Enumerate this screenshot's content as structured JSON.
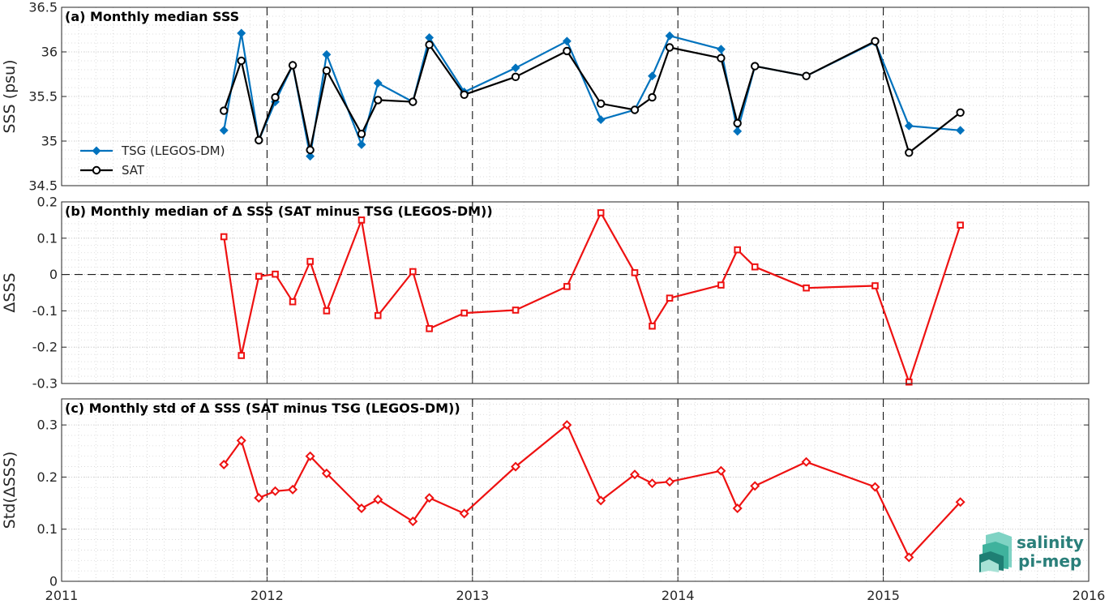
{
  "chart_data": [
    {
      "type": "line",
      "title": "(a) Monthly median SSS",
      "ylabel": "SSS (psu)",
      "xlim": [
        2011,
        2016
      ],
      "ylim": [
        34.5,
        36.5
      ],
      "yticks": [
        34.5,
        35,
        35.5,
        36,
        36.5
      ],
      "xticks": [
        2011,
        2012,
        2013,
        2014,
        2015,
        2016
      ],
      "grid": true,
      "legend_position": "bottom-left",
      "x": [
        2011.79,
        2011.875,
        2011.96,
        2012.04,
        2012.125,
        2012.21,
        2012.29,
        2012.46,
        2012.54,
        2012.71,
        2012.79,
        2012.96,
        2013.21,
        2013.46,
        2013.625,
        2013.79,
        2013.875,
        2013.96,
        2014.21,
        2014.29,
        2014.375,
        2014.625,
        2014.96,
        2015.125,
        2015.375
      ],
      "series": [
        {
          "name": "TSG (LEGOS-DM)",
          "color": "#0072BD",
          "marker": "diamond",
          "values": [
            35.12,
            36.21,
            35.01,
            35.44,
            35.85,
            34.83,
            35.97,
            34.96,
            35.65,
            35.44,
            36.16,
            35.55,
            35.82,
            36.12,
            35.24,
            35.35,
            35.73,
            36.18,
            36.03,
            35.11,
            35.84,
            35.73,
            36.11,
            35.17,
            35.12
          ]
        },
        {
          "name": "SAT",
          "color": "#000000",
          "marker": "circle",
          "values": [
            35.34,
            35.9,
            35.01,
            35.49,
            35.85,
            34.9,
            35.79,
            35.08,
            35.46,
            35.44,
            36.08,
            35.52,
            35.72,
            36.01,
            35.42,
            35.35,
            35.49,
            36.05,
            35.93,
            35.2,
            35.84,
            35.73,
            36.12,
            34.87,
            35.32
          ]
        }
      ]
    },
    {
      "type": "line",
      "title": "(b) Monthly median of Δ SSS (SAT minus TSG (LEGOS-DM))",
      "ylabel": "ΔSSS",
      "xlim": [
        2011,
        2016
      ],
      "ylim": [
        -0.3,
        0.2
      ],
      "yticks": [
        -0.3,
        -0.2,
        -0.1,
        0,
        0.1,
        0.2
      ],
      "zero_line": true,
      "grid": true,
      "x": [
        2011.79,
        2011.875,
        2011.96,
        2012.04,
        2012.125,
        2012.21,
        2012.29,
        2012.46,
        2012.54,
        2012.71,
        2012.79,
        2012.96,
        2013.21,
        2013.46,
        2013.625,
        2013.79,
        2013.875,
        2013.96,
        2014.21,
        2014.29,
        2014.375,
        2014.625,
        2014.96,
        2015.125,
        2015.375
      ],
      "series": [
        {
          "color": "#ee1111",
          "marker": "square",
          "values": [
            0.104,
            -0.223,
            -0.005,
            0.001,
            -0.075,
            0.036,
            -0.1,
            0.15,
            -0.113,
            0.008,
            -0.149,
            -0.106,
            -0.098,
            -0.033,
            0.17,
            0.005,
            -0.142,
            -0.065,
            -0.029,
            0.068,
            0.021,
            -0.037,
            -0.031,
            -0.296,
            0.136
          ]
        }
      ]
    },
    {
      "type": "line",
      "title": "(c) Monthly std of Δ SSS (SAT minus TSG (LEGOS-DM))",
      "ylabel": "Std(ΔSSS)",
      "xlim": [
        2011,
        2016
      ],
      "ylim": [
        0,
        0.35
      ],
      "yticks": [
        0,
        0.1,
        0.2,
        0.3
      ],
      "grid": true,
      "x": [
        2011.79,
        2011.875,
        2011.96,
        2012.04,
        2012.125,
        2012.21,
        2012.29,
        2012.46,
        2012.54,
        2012.71,
        2012.79,
        2012.96,
        2013.21,
        2013.46,
        2013.625,
        2013.79,
        2013.875,
        2013.96,
        2014.21,
        2014.29,
        2014.375,
        2014.625,
        2014.96,
        2015.125,
        2015.375
      ],
      "series": [
        {
          "color": "#ee1111",
          "marker": "diamond",
          "values": [
            0.224,
            0.27,
            0.16,
            0.173,
            0.176,
            0.24,
            0.207,
            0.14,
            0.157,
            0.115,
            0.16,
            0.13,
            0.22,
            0.3,
            0.155,
            0.205,
            0.188,
            0.191,
            0.212,
            0.14,
            0.183,
            0.229,
            0.181,
            0.046,
            0.152
          ]
        }
      ]
    }
  ],
  "logo": {
    "line1": "salinity",
    "line2": "pi-mep",
    "accent": "#2f9e8f"
  }
}
